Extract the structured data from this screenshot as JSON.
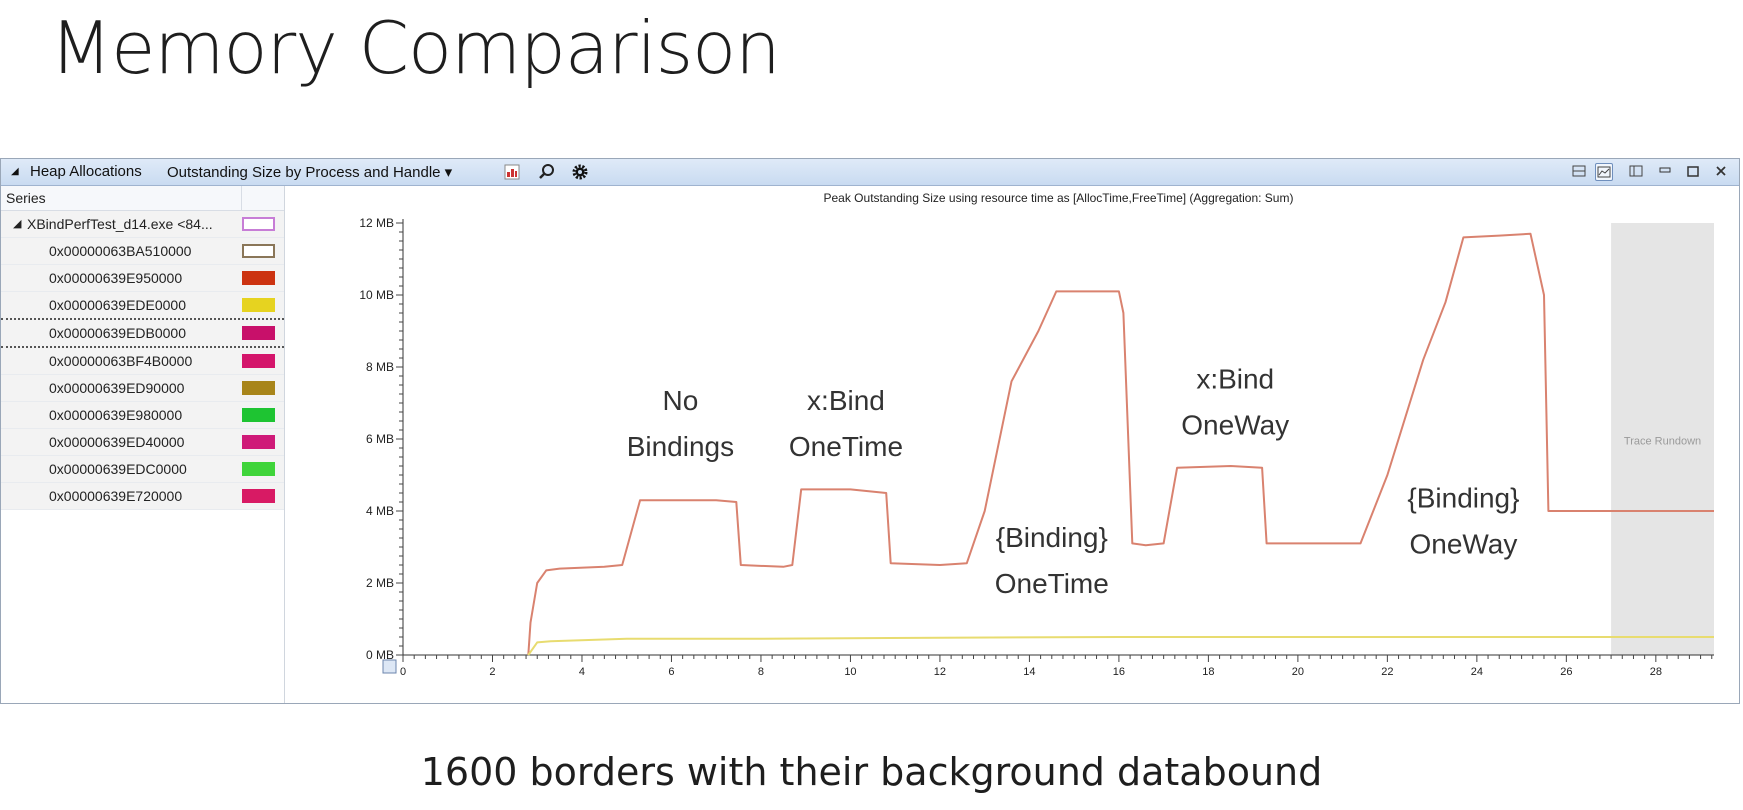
{
  "slide": {
    "title": "Memory Comparison",
    "caption": "1600 borders with their background databound"
  },
  "toolbar": {
    "collapse_glyph": "◢",
    "panel_title": "Heap Allocations",
    "view_selector": "Outstanding Size by Process and Handle",
    "dropdown_glyph": "▾",
    "icons": [
      "chart-view-icon",
      "search-icon",
      "settings-icon"
    ],
    "window_controls": [
      "layout-icon",
      "chart-only-icon",
      "table-only-icon",
      "minimize-icon",
      "maximize-icon",
      "close-icon"
    ]
  },
  "legend": {
    "header": "Series",
    "rows": [
      {
        "label": "XBindPerfTest_d14.exe <84...",
        "color": "#c77dd6",
        "outline": true,
        "parent": true,
        "dotted": false
      },
      {
        "label": "0x00000063BA510000",
        "color": "#8a7658",
        "outline": true,
        "parent": false,
        "dotted": false
      },
      {
        "label": "0x00000639E950000",
        "color": "#cc3311",
        "outline": false,
        "parent": false,
        "dotted": false
      },
      {
        "label": "0x00000639EDE0000",
        "color": "#e6d320",
        "outline": false,
        "parent": false,
        "dotted": true
      },
      {
        "label": "0x00000639EDB0000",
        "color": "#c8106a",
        "outline": false,
        "parent": false,
        "dotted": true
      },
      {
        "label": "0x00000063BF4B0000",
        "color": "#d4156b",
        "outline": false,
        "parent": false,
        "dotted": false
      },
      {
        "label": "0x00000639ED90000",
        "color": "#a8851a",
        "outline": false,
        "parent": false,
        "dotted": false
      },
      {
        "label": "0x00000639E980000",
        "color": "#1ec432",
        "outline": false,
        "parent": false,
        "dotted": false
      },
      {
        "label": "0x00000639ED40000",
        "color": "#cf1a78",
        "outline": false,
        "parent": false,
        "dotted": false
      },
      {
        "label": "0x00000639EDC0000",
        "color": "#3fd43a",
        "outline": false,
        "parent": false,
        "dotted": false
      },
      {
        "label": "0x00000639E720000",
        "color": "#d81a64",
        "outline": false,
        "parent": false,
        "dotted": false
      }
    ]
  },
  "chart_data": {
    "type": "line",
    "title": "Peak Outstanding Size using resource time as [AllocTime,FreeTime] (Aggregation: Sum)",
    "xlabel": "",
    "ylabel": "",
    "xlim": [
      0,
      29.3
    ],
    "ylim": [
      0,
      12
    ],
    "x_ticks": [
      0,
      2,
      4,
      6,
      8,
      10,
      12,
      14,
      16,
      18,
      20,
      22,
      24,
      26,
      28
    ],
    "y_ticks": [
      0,
      2,
      4,
      6,
      8,
      10,
      12
    ],
    "y_tick_labels": [
      "0 MB",
      "2 MB",
      "4 MB",
      "6 MB",
      "8 MB",
      "10 MB",
      "12 MB"
    ],
    "grid": false,
    "shaded_region": {
      "x": [
        27.0,
        29.3
      ],
      "label": "Trace Rundown",
      "color": "#dcdcdc"
    },
    "series": [
      {
        "color": "#d9826f",
        "x": [
          2.8,
          2.85,
          3.0,
          3.2,
          3.5,
          4.5,
          4.9,
          5.3,
          7.0,
          7.45,
          7.55,
          8.5,
          8.7,
          8.9,
          10.0,
          10.8,
          10.9,
          12.0,
          12.6,
          13.0,
          13.6,
          14.2,
          14.6,
          16.0,
          16.1,
          16.3,
          16.6,
          17.0,
          17.3,
          18.5,
          19.2,
          19.3,
          20.5,
          21.4,
          22.0,
          22.8,
          23.3,
          23.7,
          24.5,
          25.2,
          25.5,
          25.6,
          29.3
        ],
        "y": [
          0,
          0.9,
          2.0,
          2.35,
          2.4,
          2.45,
          2.5,
          4.3,
          4.3,
          4.25,
          2.5,
          2.45,
          2.5,
          4.6,
          4.6,
          4.5,
          2.55,
          2.5,
          2.55,
          4.0,
          7.6,
          9.0,
          10.1,
          10.1,
          9.5,
          3.1,
          3.05,
          3.1,
          5.2,
          5.25,
          5.2,
          3.1,
          3.1,
          3.1,
          5.0,
          8.2,
          9.8,
          11.6,
          11.65,
          11.7,
          10.0,
          4.0,
          4.0
        ]
      },
      {
        "color": "#e8dc70",
        "x": [
          2.8,
          3.0,
          3.3,
          5.0,
          8.0,
          12.0,
          16.0,
          20.0,
          24.0,
          27.0,
          29.3
        ],
        "y": [
          0,
          0.35,
          0.38,
          0.45,
          0.45,
          0.48,
          0.5,
          0.5,
          0.5,
          0.5,
          0.5
        ]
      }
    ],
    "annotations": [
      {
        "lines": [
          "No",
          "Bindings"
        ],
        "x": 6.2,
        "y": 6.8
      },
      {
        "lines": [
          "x:Bind",
          "OneTime"
        ],
        "x": 9.9,
        "y": 6.8
      },
      {
        "lines": [
          "{Binding}",
          "OneTime"
        ],
        "x": 14.5,
        "y": 3.0
      },
      {
        "lines": [
          "x:Bind",
          "OneWay"
        ],
        "x": 18.6,
        "y": 7.4
      },
      {
        "lines": [
          "{Binding}",
          "OneWay"
        ],
        "x": 23.7,
        "y": 4.1
      }
    ]
  }
}
